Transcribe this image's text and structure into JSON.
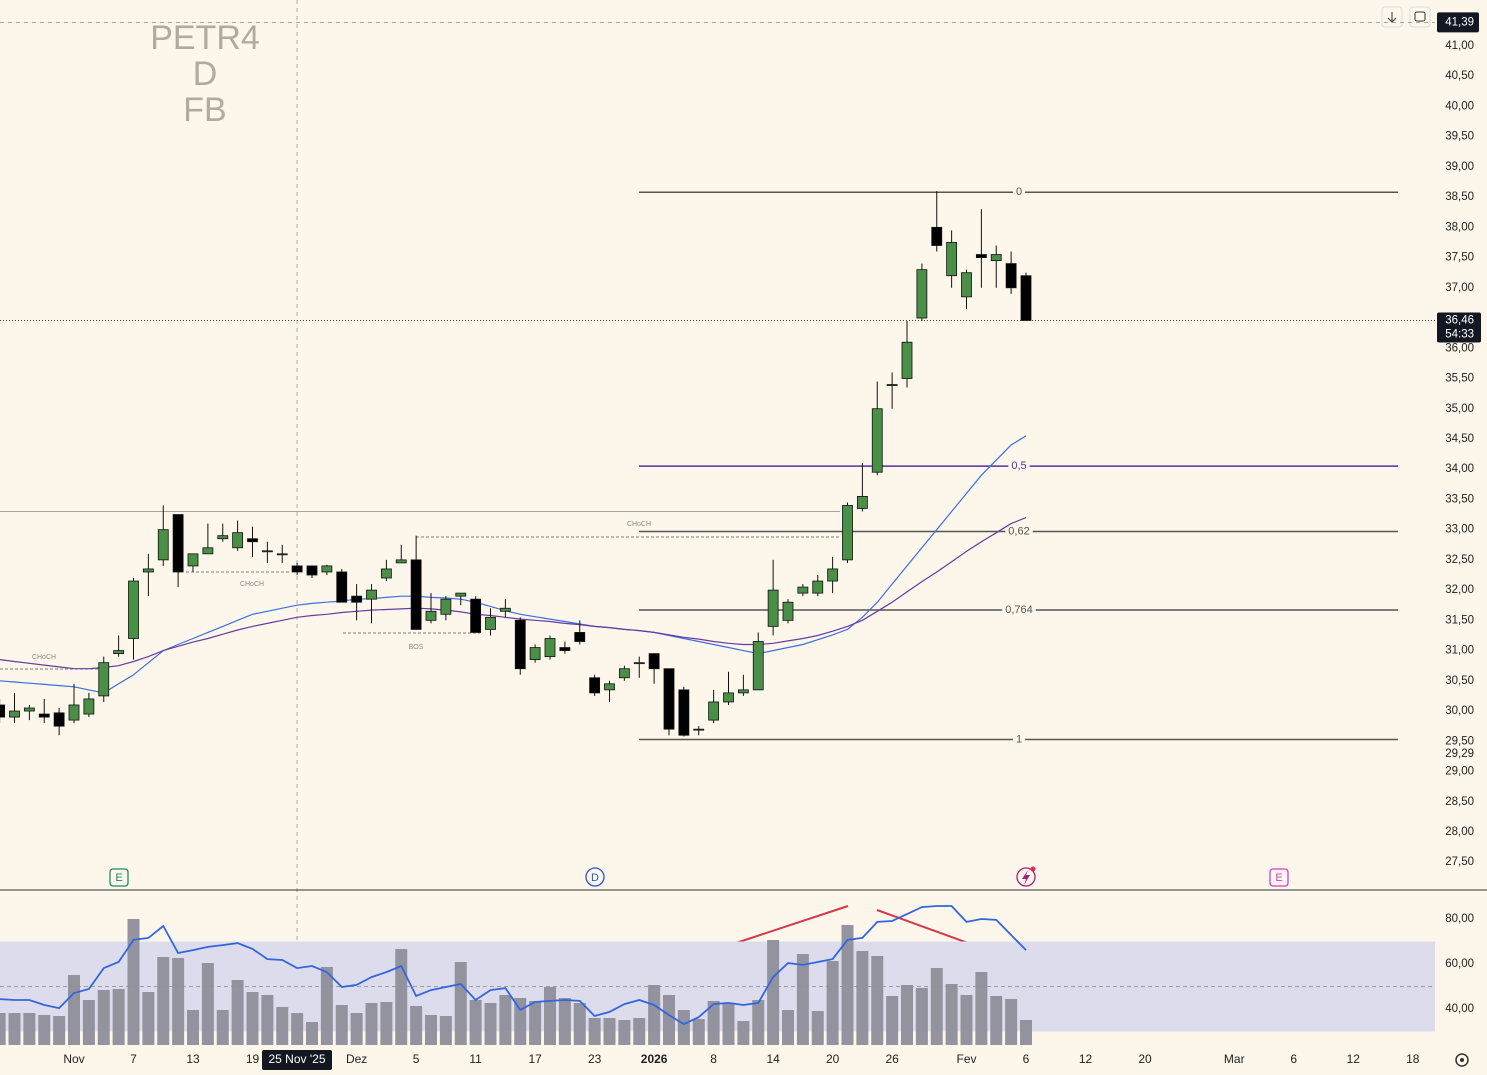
{
  "chart_data": {
    "type": "candlestick",
    "watermark": [
      "PETR4",
      "D",
      "FB"
    ],
    "categories": [
      null,
      null,
      null,
      null,
      null,
      "Nov",
      null,
      null,
      null,
      "7",
      null,
      null,
      null,
      "13",
      null,
      null,
      null,
      "19",
      null,
      null,
      null,
      null,
      null,
      null,
      "Dez",
      null,
      null,
      null,
      "5",
      null,
      null,
      null,
      "11",
      null,
      null,
      null,
      "17",
      null,
      null,
      null,
      "23",
      null,
      null,
      null,
      "2026",
      null,
      null,
      null,
      "8",
      null,
      null,
      null,
      "14",
      null,
      null,
      null,
      "20",
      null,
      null,
      null,
      "26",
      null,
      null,
      null,
      null,
      "Fev",
      null,
      null,
      null,
      "6",
      null,
      null,
      null,
      "12",
      null,
      null,
      null,
      "20",
      null,
      null,
      null,
      null,
      null,
      "Mar",
      null,
      null,
      null,
      "6",
      null,
      null,
      null,
      "12",
      null,
      null,
      null,
      "18"
    ],
    "crosshair_label": "25 Nov '25",
    "open": [
      30.1,
      29.9,
      30.0,
      29.95,
      29.97,
      29.85,
      29.95,
      30.25,
      30.95,
      31.2,
      32.3,
      32.5,
      33.25,
      32.4,
      32.6,
      32.85,
      32.7,
      32.85,
      32.65,
      32.6,
      32.4,
      32.4,
      32.3,
      32.3,
      31.9,
      31.85,
      32.2,
      32.45,
      32.5,
      31.5,
      31.6,
      31.9,
      31.85,
      31.35,
      31.65,
      31.5,
      30.85,
      30.9,
      31.05,
      31.3,
      30.55,
      30.35,
      30.55,
      30.8,
      30.95,
      30.7,
      30.35,
      29.7,
      29.85,
      30.15,
      30.3,
      30.35,
      31.4,
      31.5,
      31.95,
      31.95,
      32.15,
      32.5,
      33.35,
      33.95,
      35.4,
      35.5,
      36.5,
      38.0,
      37.2,
      36.85,
      37.55,
      37.45,
      37.4,
      37.2,
      null,
      null,
      null,
      null,
      null,
      null,
      null,
      null,
      null,
      null,
      null,
      null,
      null,
      null,
      null,
      null,
      null,
      null,
      null,
      null,
      null,
      null,
      null,
      null,
      null,
      null
    ],
    "high": [
      30.2,
      30.3,
      30.1,
      30.2,
      30.05,
      30.45,
      30.3,
      30.9,
      31.25,
      32.2,
      32.6,
      33.4,
      33.25,
      32.6,
      33.1,
      33.1,
      33.15,
      33.05,
      32.8,
      32.75,
      32.45,
      32.4,
      32.42,
      32.35,
      32.1,
      32.1,
      32.5,
      32.75,
      32.9,
      31.95,
      31.9,
      31.95,
      31.9,
      31.7,
      31.85,
      31.55,
      31.1,
      31.25,
      31.15,
      31.5,
      30.6,
      30.5,
      30.75,
      30.9,
      30.95,
      30.7,
      30.4,
      29.75,
      30.35,
      30.65,
      30.6,
      31.3,
      32.5,
      31.85,
      32.1,
      32.25,
      32.55,
      33.45,
      34.1,
      35.45,
      35.6,
      36.45,
      37.4,
      38.6,
      37.95,
      37.3,
      38.3,
      37.7,
      37.6,
      37.25,
      null,
      null,
      null,
      null,
      null,
      null,
      null,
      null,
      null,
      null,
      null,
      null,
      null,
      null,
      null,
      null,
      null,
      null,
      null,
      null,
      null,
      null,
      null,
      null,
      null,
      null
    ],
    "low": [
      29.8,
      29.8,
      29.85,
      29.8,
      29.6,
      29.8,
      29.9,
      30.15,
      30.9,
      30.85,
      31.9,
      32.4,
      32.05,
      32.3,
      32.6,
      32.8,
      32.65,
      32.55,
      32.45,
      32.45,
      32.25,
      32.2,
      32.25,
      31.8,
      31.5,
      31.45,
      32.15,
      32.45,
      31.35,
      31.45,
      31.5,
      31.75,
      31.3,
      31.25,
      31.55,
      30.6,
      30.8,
      30.85,
      30.95,
      31.1,
      30.25,
      30.15,
      30.5,
      30.55,
      30.45,
      29.6,
      29.58,
      29.6,
      29.8,
      30.1,
      30.25,
      30.35,
      31.25,
      31.45,
      31.9,
      31.9,
      31.95,
      32.45,
      33.3,
      33.9,
      35.0,
      35.35,
      36.45,
      37.6,
      37.0,
      36.65,
      37.0,
      37.0,
      36.9,
      36.46,
      null,
      null,
      null,
      null,
      null,
      null,
      null,
      null,
      null,
      null,
      null,
      null,
      null,
      null,
      null,
      null,
      null,
      null,
      null,
      null,
      null,
      null,
      null,
      null,
      null,
      null
    ],
    "close": [
      29.9,
      30.0,
      30.05,
      29.9,
      29.75,
      30.1,
      30.2,
      30.8,
      31.0,
      32.15,
      32.35,
      33.0,
      32.3,
      32.6,
      32.7,
      32.9,
      32.95,
      32.8,
      32.65,
      32.6,
      32.3,
      32.25,
      32.4,
      31.8,
      31.8,
      32.0,
      32.35,
      32.5,
      31.35,
      31.65,
      31.85,
      31.95,
      31.3,
      31.55,
      31.7,
      30.7,
      31.05,
      31.2,
      31.0,
      31.15,
      30.3,
      30.45,
      30.7,
      30.8,
      30.7,
      29.7,
      29.6,
      29.7,
      30.15,
      30.3,
      30.35,
      31.15,
      32.0,
      31.8,
      32.05,
      32.15,
      32.35,
      33.4,
      33.55,
      35.0,
      35.4,
      36.1,
      37.3,
      37.7,
      37.75,
      37.25,
      37.5,
      37.55,
      37.0,
      36.46,
      null,
      null,
      null,
      null,
      null,
      null,
      null,
      null,
      null,
      null,
      null,
      null,
      null,
      null,
      null,
      null,
      null,
      null,
      null,
      null,
      null,
      null,
      null,
      null,
      null,
      null
    ],
    "up_color": "#4a8f47",
    "down_color": "#000000",
    "ma": [
      {
        "color": "#3d6fe0",
        "values": [
          30.5,
          30.48,
          30.46,
          30.44,
          30.42,
          30.4,
          30.35,
          30.3,
          30.45,
          30.6,
          30.8,
          31.0,
          31.1,
          31.2,
          31.3,
          31.4,
          31.5,
          31.6,
          31.65,
          31.7,
          31.75,
          31.78,
          31.8,
          31.82,
          31.85,
          31.86,
          31.88,
          31.9,
          31.9,
          31.88,
          31.87,
          31.85,
          31.8,
          31.73,
          31.66,
          31.6,
          31.56,
          31.52,
          31.48,
          31.44,
          31.4,
          31.38,
          31.35,
          31.33,
          31.3,
          31.25,
          31.2,
          31.15,
          31.1,
          31.05,
          31.0,
          30.95,
          31.0,
          31.05,
          31.1,
          31.18,
          31.26,
          31.35,
          31.55,
          31.8,
          32.1,
          32.4,
          32.7,
          33.0,
          33.3,
          33.6,
          33.9,
          34.15,
          34.4,
          34.55,
          null,
          null,
          null,
          null,
          null,
          null,
          null,
          null,
          null,
          null,
          null,
          null,
          null,
          null,
          null,
          null,
          null,
          null,
          null,
          null,
          null,
          null,
          null,
          null,
          null,
          null
        ]
      },
      {
        "color": "#6a3aa0",
        "values": [
          30.85,
          30.82,
          30.79,
          30.76,
          30.73,
          30.7,
          30.7,
          30.72,
          30.75,
          30.82,
          30.9,
          31.0,
          31.07,
          31.14,
          31.2,
          31.27,
          31.34,
          31.4,
          31.45,
          31.5,
          31.55,
          31.58,
          31.6,
          31.63,
          31.65,
          31.67,
          31.68,
          31.69,
          31.7,
          31.69,
          31.67,
          31.64,
          31.6,
          31.58,
          31.55,
          31.52,
          31.5,
          31.48,
          31.45,
          31.43,
          31.4,
          31.38,
          31.35,
          31.33,
          31.3,
          31.26,
          31.22,
          31.19,
          31.15,
          31.12,
          31.1,
          31.1,
          31.12,
          31.16,
          31.2,
          31.25,
          31.32,
          31.4,
          31.5,
          31.65,
          31.8,
          31.97,
          32.14,
          32.3,
          32.47,
          32.64,
          32.8,
          32.95,
          33.1,
          33.2,
          null,
          null,
          null,
          null,
          null,
          null,
          null,
          null,
          null,
          null,
          null,
          null,
          null,
          null,
          null,
          null,
          null,
          null,
          null,
          null,
          null,
          null,
          null,
          null,
          null,
          null
        ]
      }
    ],
    "fib_levels": [
      {
        "label": "0",
        "value": 38.58,
        "color": "#555555"
      },
      {
        "label": "0,5",
        "value": 34.05,
        "color": "#5b2ca0"
      },
      {
        "label": "0,62",
        "value": 32.97,
        "color": "#555555"
      },
      {
        "label": "0,764",
        "value": 31.67,
        "color": "#555555"
      },
      {
        "label": "1",
        "value": 29.53,
        "color": "#555555"
      }
    ],
    "hline": 33.3,
    "structure_labels": [
      "CHoCH",
      "CHoCH",
      "BOS",
      "CHoCH"
    ],
    "events": [
      "E",
      "D",
      "E"
    ],
    "ylim": [
      27.04,
      41.76
    ],
    "yticks": [
      {
        "value": 41,
        "label": "41,00"
      },
      {
        "value": 40.5,
        "label": "40,50"
      },
      {
        "value": 40,
        "label": "40,00"
      },
      {
        "value": 39.5,
        "label": "39,50"
      },
      {
        "value": 39,
        "label": "39,00"
      },
      {
        "value": 38.5,
        "label": "38,50"
      },
      {
        "value": 38,
        "label": "38,00"
      },
      {
        "value": 37.5,
        "label": "37,50"
      },
      {
        "value": 37,
        "label": "37,00"
      },
      {
        "value": 36.5,
        "label": "36,50"
      },
      {
        "value": 36,
        "label": "36,00"
      },
      {
        "value": 35.5,
        "label": "35,50"
      },
      {
        "value": 35,
        "label": "35,00"
      },
      {
        "value": 34.5,
        "label": "34,50"
      },
      {
        "value": 34,
        "label": "34,00"
      },
      {
        "value": 33.5,
        "label": "33,50"
      },
      {
        "value": 33,
        "label": "33,00"
      },
      {
        "value": 32.5,
        "label": "32,50"
      },
      {
        "value": 32,
        "label": "32,00"
      },
      {
        "value": 31.5,
        "label": "31,50"
      },
      {
        "value": 31,
        "label": "31,00"
      },
      {
        "value": 30.5,
        "label": "30,50"
      },
      {
        "value": 30,
        "label": "30,00"
      },
      {
        "value": 29.5,
        "label": "29,50"
      },
      {
        "value": 29,
        "label": "29,00"
      },
      {
        "value": 28.5,
        "label": "28,50"
      },
      {
        "value": 28,
        "label": "28,00"
      },
      {
        "value": 27.5,
        "label": "27,50"
      }
    ],
    "price_tags": [
      {
        "value": 41.39,
        "label": "41,39",
        "style": "crosshair"
      },
      {
        "value": 36.46,
        "label": "36,46",
        "sub": "54:33",
        "style": "last"
      },
      {
        "value": 29.29,
        "label": "29,29",
        "style": "plain"
      }
    ],
    "volume": {
      "color": "#8e8e9c",
      "values": [
        32,
        32,
        32,
        30,
        29,
        70,
        45,
        55,
        56,
        126,
        53,
        88,
        87,
        35,
        82,
        35,
        65,
        53,
        50,
        38,
        32,
        23,
        78,
        40,
        32,
        42,
        43,
        96,
        39,
        30,
        29,
        83,
        45,
        42,
        50,
        47,
        44,
        58,
        47,
        42,
        27,
        27,
        25,
        27,
        60,
        50,
        35,
        26,
        44,
        41,
        24,
        45,
        105,
        35,
        91,
        34,
        84,
        120,
        94,
        89,
        49,
        60,
        57,
        77,
        61,
        50,
        73,
        49,
        46,
        25,
        null,
        null,
        null,
        null,
        null,
        null,
        null,
        null,
        null,
        null,
        null,
        null,
        null,
        null,
        null,
        null,
        null,
        null,
        null,
        null,
        null,
        null,
        null,
        null,
        null,
        null
      ]
    },
    "rsi": {
      "color": "#3366dd",
      "band": [
        30,
        70
      ],
      "band_color": "#dcdcec",
      "midline": 50,
      "ylim": [
        24,
        92.9
      ],
      "yticks": [
        {
          "value": 80,
          "label": "80,00"
        },
        {
          "value": 60,
          "label": "60,00"
        },
        {
          "value": 40,
          "label": "40,00"
        }
      ],
      "values": [
        44.4,
        44.0,
        44.0,
        41.8,
        40.4,
        47.1,
        48.9,
        58.2,
        60.9,
        70.7,
        71.6,
        76.9,
        64.9,
        66.2,
        67.6,
        68.4,
        69.3,
        66.7,
        62.2,
        61.8,
        58.2,
        59.1,
        56.4,
        49.8,
        50.7,
        54.2,
        56.4,
        59.1,
        45.8,
        48.4,
        49.8,
        51.1,
        44.0,
        48.4,
        49.3,
        39.6,
        43.1,
        43.6,
        44.0,
        43.6,
        36.9,
        38.7,
        42.2,
        44.0,
        41.8,
        37.3,
        33.3,
        36.4,
        42.2,
        42.7,
        41.8,
        42.7,
        54.2,
        60.4,
        59.6,
        60.9,
        62.2,
        70.7,
        71.6,
        78.7,
        79.1,
        82.2,
        85.3,
        85.8,
        85.8,
        78.7,
        80.0,
        79.6,
        72.9,
        66.2,
        null,
        null,
        null,
        null,
        null,
        null,
        null,
        null,
        null,
        null,
        null,
        null,
        null,
        null,
        null,
        null,
        null,
        null,
        null,
        null,
        null,
        null,
        null,
        null,
        null,
        null
      ]
    }
  }
}
